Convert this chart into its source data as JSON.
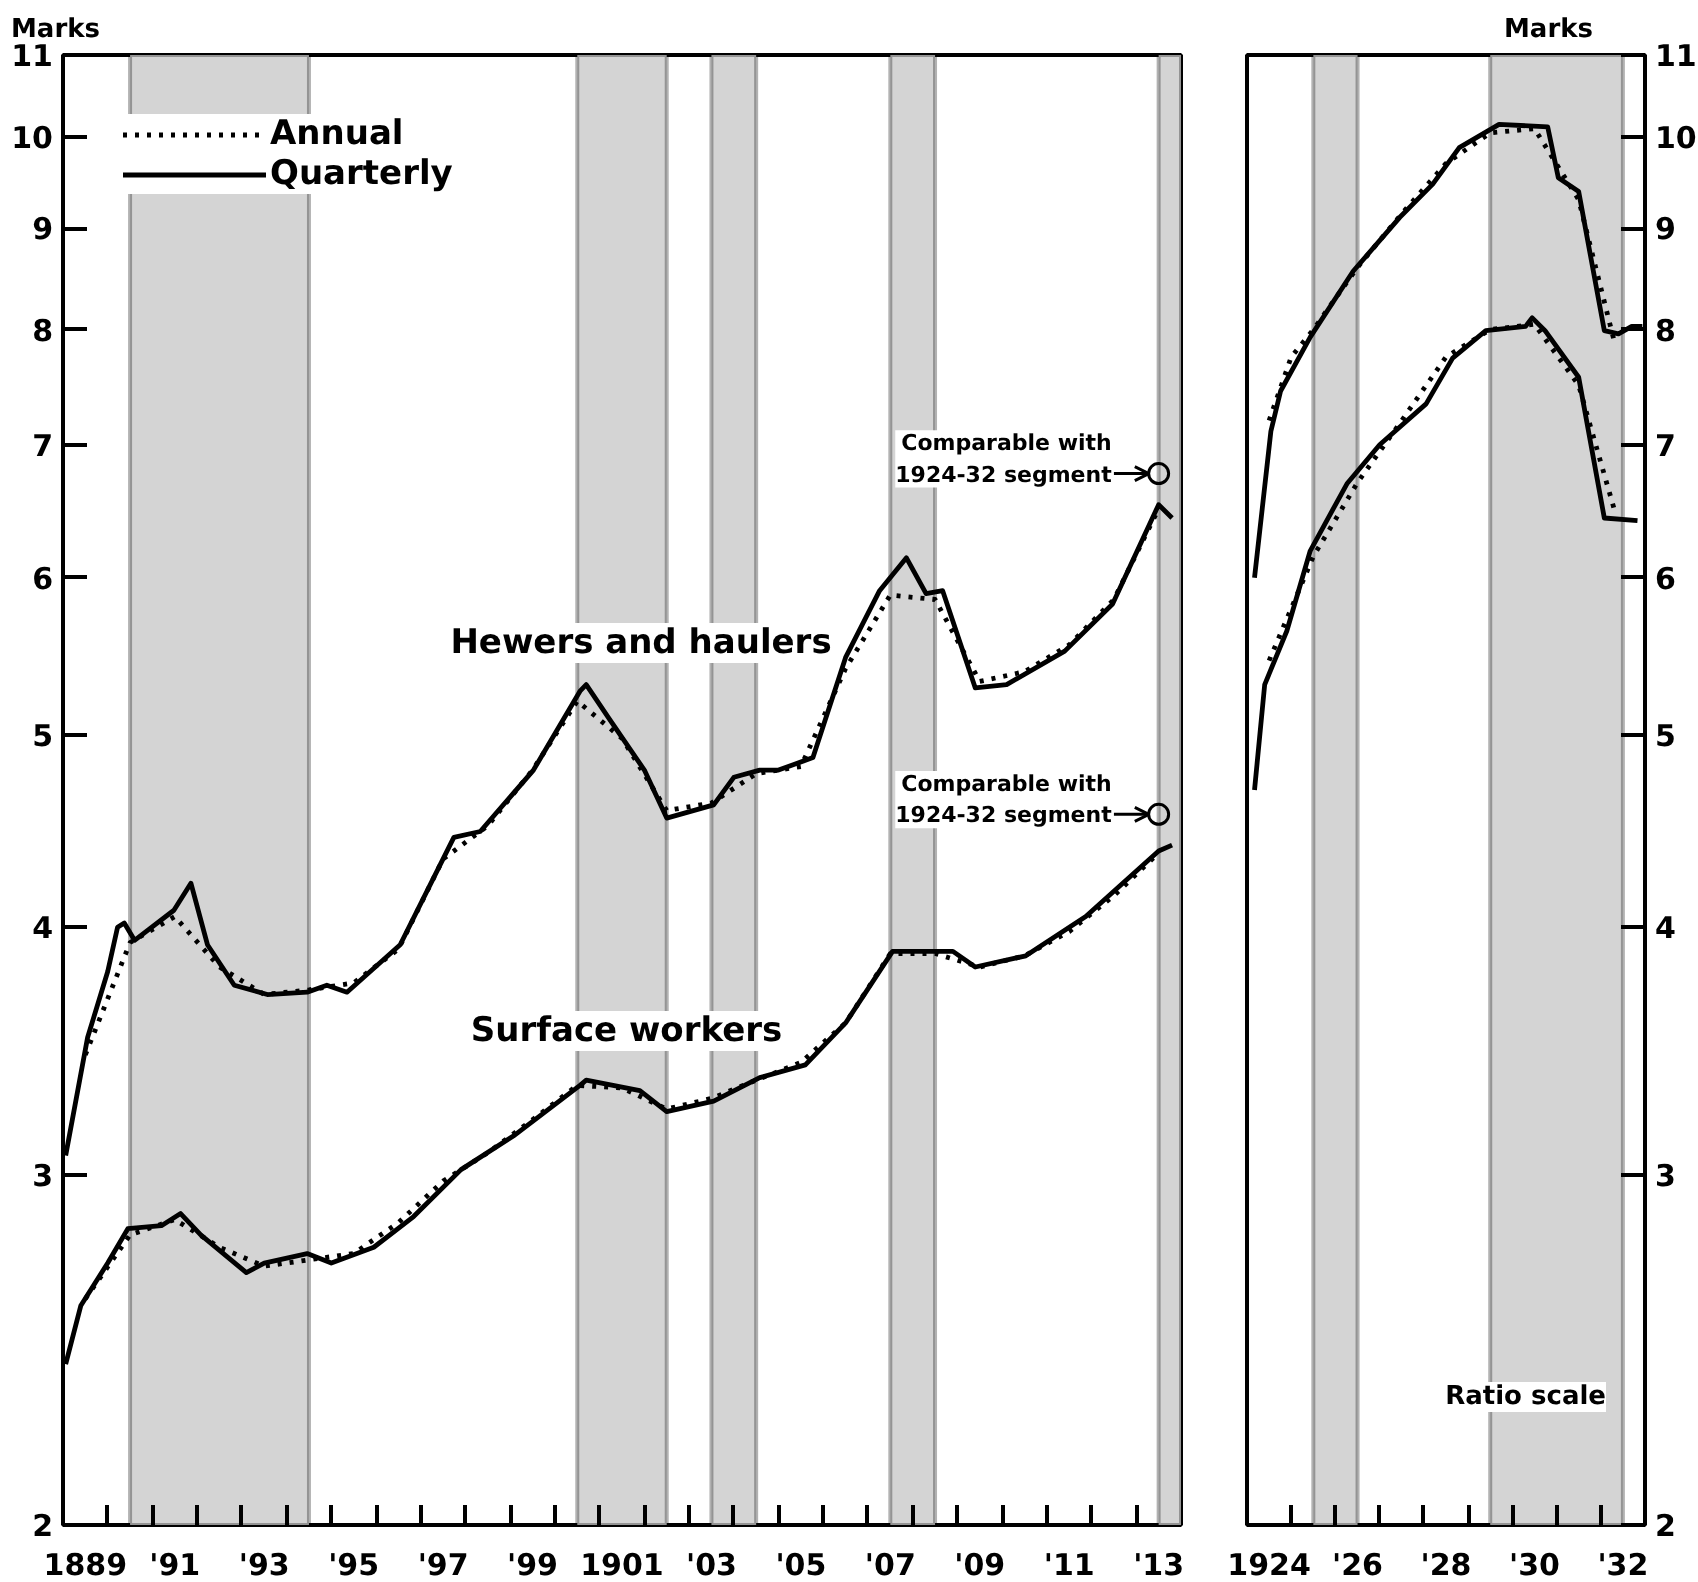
{
  "chart_data": [
    {
      "type": "line",
      "ylabel": "Marks",
      "log": true,
      "grid": false,
      "legend": "top left",
      "xlim": [
        1888.5,
        1913.5
      ],
      "ylim": [
        2,
        11
      ],
      "yticks": [
        2,
        3,
        4,
        5,
        6,
        7,
        8,
        9,
        10,
        11
      ],
      "xticks": [
        {
          "value": 1889,
          "label": "1889"
        },
        {
          "value": 1891,
          "label": "'91"
        },
        {
          "value": 1893,
          "label": "'93"
        },
        {
          "value": 1895,
          "label": "'95"
        },
        {
          "value": 1897,
          "label": "'97"
        },
        {
          "value": 1899,
          "label": "'99"
        },
        {
          "value": 1901,
          "label": "1901"
        },
        {
          "value": 1903,
          "label": "'03"
        },
        {
          "value": 1905,
          "label": "'05"
        },
        {
          "value": 1907,
          "label": "'07"
        },
        {
          "value": 1909,
          "label": "'09"
        },
        {
          "value": 1911,
          "label": "'11"
        },
        {
          "value": 1913,
          "label": "'13"
        },
        {
          "value": 1889.5,
          "label": null
        },
        {
          "value": 1890.5,
          "label": null
        },
        {
          "value": 1891.5,
          "label": null
        },
        {
          "value": 1892.5,
          "label": null
        },
        {
          "value": 1893.5,
          "label": null
        },
        {
          "value": 1894.5,
          "label": null
        },
        {
          "value": 1895.5,
          "label": null
        },
        {
          "value": 1896.5,
          "label": null
        },
        {
          "value": 1897.5,
          "label": null
        },
        {
          "value": 1898.5,
          "label": null
        },
        {
          "value": 1899.5,
          "label": null
        },
        {
          "value": 1900.5,
          "label": null
        },
        {
          "value": 1901.5,
          "label": null
        },
        {
          "value": 1902.5,
          "label": null
        },
        {
          "value": 1903.5,
          "label": null
        },
        {
          "value": 1904.5,
          "label": null
        },
        {
          "value": 1905.5,
          "label": null
        },
        {
          "value": 1906.5,
          "label": null
        },
        {
          "value": 1907.5,
          "label": null
        },
        {
          "value": 1908.5,
          "label": null
        },
        {
          "value": 1909.5,
          "label": null
        },
        {
          "value": 1910.5,
          "label": null
        },
        {
          "value": 1911.5,
          "label": null
        },
        {
          "value": 1912.5,
          "label": null
        }
      ],
      "bands": [
        {
          "axis": "x",
          "from": 1890,
          "to": 1894,
          "color": "#d4d4d4"
        },
        {
          "axis": "x",
          "from": 1900,
          "to": 1902,
          "color": "#d4d4d4"
        },
        {
          "axis": "x",
          "from": 1903,
          "to": 1904,
          "color": "#d4d4d4"
        },
        {
          "axis": "x",
          "from": 1907,
          "to": 1908,
          "color": "#d4d4d4"
        },
        {
          "axis": "x",
          "from": 1913,
          "to": 1913.5,
          "color": "#d4d4d4"
        }
      ],
      "annotations": [
        "Hewers and haulers",
        "Surface workers",
        {
          "text": "Comparable with\n1924-32 segment",
          "x": 1913,
          "y": 6.77
        },
        {
          "text": "Comparable with\n1924-32 segment",
          "x": 1913,
          "y": 4.56
        }
      ],
      "series": [
        {
          "name": "Annual",
          "color": "#000000",
          "line_style": "dotted",
          "x": [
            1889,
            1890,
            1891,
            1892,
            1893,
            1894,
            1895,
            1896,
            1897,
            1898,
            1899,
            1900,
            1901,
            1902,
            1903,
            1904,
            1905,
            1906,
            1907,
            1908,
            1909,
            1910,
            1911,
            1912,
            1913
          ],
          "values": [
            3.45,
            3.93,
            4.05,
            3.82,
            3.7,
            3.72,
            3.75,
            3.9,
            4.33,
            4.5,
            4.8,
            5.2,
            4.98,
            4.58,
            4.62,
            4.78,
            4.82,
            5.4,
            5.88,
            5.85,
            5.32,
            5.38,
            5.55,
            5.85,
            6.5
          ]
        },
        {
          "name": "Quarterly",
          "color": "#000000",
          "line_style": "solid",
          "x": [
            1888.56,
            1889.05,
            1889.5,
            1889.72,
            1889.87,
            1890.1,
            1890.98,
            1891.36,
            1891.73,
            1892.33,
            1893.07,
            1893.96,
            1894.4,
            1894.85,
            1896.04,
            1897.24,
            1897.83,
            1899.02,
            1900.06,
            1900.2,
            1900.7,
            1901.5,
            1902.0,
            1903.05,
            1903.5,
            1904.08,
            1904.5,
            1905.27,
            1906.0,
            1906.76,
            1907.36,
            1907.8,
            1908.17,
            1908.9,
            1909.6,
            1910.9,
            1911.97,
            1913.0,
            1913.3
          ],
          "values": [
            3.07,
            3.52,
            3.8,
            4.0,
            4.02,
            3.94,
            4.08,
            4.21,
            3.92,
            3.74,
            3.7,
            3.71,
            3.74,
            3.71,
            3.92,
            4.44,
            4.47,
            4.8,
            5.26,
            5.3,
            5.1,
            4.8,
            4.54,
            4.61,
            4.76,
            4.8,
            4.8,
            4.87,
            5.47,
            5.91,
            6.14,
            5.89,
            5.91,
            5.28,
            5.3,
            5.51,
            5.82,
            6.53,
            6.43
          ]
        },
        {
          "color": "#000000",
          "line_style": "dotted",
          "x": [
            1889,
            1890,
            1891,
            1892,
            1893,
            1894,
            1895,
            1896,
            1897,
            1898,
            1899,
            1900,
            1901,
            1902,
            1903,
            1904,
            1905,
            1906,
            1907,
            1908,
            1909,
            1910,
            1911,
            1912,
            1913
          ],
          "values": [
            2.6,
            2.8,
            2.85,
            2.76,
            2.7,
            2.72,
            2.74,
            2.84,
            2.98,
            3.08,
            3.2,
            3.33,
            3.32,
            3.24,
            3.28,
            3.35,
            3.42,
            3.58,
            3.88,
            3.88,
            3.82,
            3.87,
            3.98,
            4.15,
            4.36
          ]
        },
        {
          "color": "#000000",
          "line_style": "solid",
          "x": [
            1888.56,
            1888.9,
            1889.5,
            1889.95,
            1890.7,
            1891.13,
            1891.58,
            1892.6,
            1893.0,
            1893.96,
            1894.5,
            1895.45,
            1896.34,
            1897.4,
            1898.57,
            1900.06,
            1900.2,
            1901.4,
            1902.0,
            1903.05,
            1904.08,
            1905.1,
            1906.0,
            1907.05,
            1907.95,
            1908.4,
            1908.9,
            1910.03,
            1911.37,
            1913.0,
            1913.3
          ],
          "values": [
            2.41,
            2.58,
            2.71,
            2.82,
            2.83,
            2.87,
            2.8,
            2.68,
            2.71,
            2.74,
            2.71,
            2.76,
            2.86,
            3.02,
            3.14,
            3.33,
            3.35,
            3.31,
            3.23,
            3.27,
            3.36,
            3.41,
            3.58,
            3.89,
            3.89,
            3.89,
            3.82,
            3.87,
            4.05,
            4.37,
            4.4
          ]
        }
      ]
    },
    {
      "type": "line",
      "ylabel": "Marks",
      "log": true,
      "grid": false,
      "xlim": [
        1923.5,
        1932.5
      ],
      "ylim": [
        2,
        11
      ],
      "yticks": [
        2,
        3,
        4,
        5,
        6,
        7,
        8,
        9,
        10,
        11
      ],
      "xticks": [
        {
          "value": 1924,
          "label": "1924"
        },
        {
          "value": 1926,
          "label": "'26"
        },
        {
          "value": 1928,
          "label": "'28"
        },
        {
          "value": 1930,
          "label": "'30"
        },
        {
          "value": 1932,
          "label": "'32"
        },
        {
          "value": 1924.5,
          "label": null
        },
        {
          "value": 1925.5,
          "label": null
        },
        {
          "value": 1926.5,
          "label": null
        },
        {
          "value": 1927.5,
          "label": null
        },
        {
          "value": 1928.5,
          "label": null
        },
        {
          "value": 1929.5,
          "label": null
        },
        {
          "value": 1930.5,
          "label": null
        },
        {
          "value": 1931.5,
          "label": null
        }
      ],
      "bands": [
        {
          "axis": "x",
          "from": 1925,
          "to": 1926,
          "color": "#d4d4d4"
        },
        {
          "axis": "x",
          "from": 1929,
          "to": 1932,
          "color": "#d4d4d4"
        }
      ],
      "annotations": [
        "Ratio scale"
      ],
      "series": [
        {
          "color": "#000000",
          "line_style": "dotted",
          "x": [
            1924,
            1924.5,
            1925,
            1926,
            1927,
            1928,
            1929,
            1930,
            1931,
            1931.8
          ],
          "values": [
            7.2,
            7.75,
            8.0,
            8.6,
            9.15,
            9.7,
            10.05,
            10.1,
            9.3,
            7.9
          ]
        },
        {
          "color": "#000000",
          "line_style": "solid",
          "x": [
            1923.67,
            1924.04,
            1924.26,
            1924.93,
            1925.9,
            1926.95,
            1927.7,
            1928.3,
            1929.2,
            1930.3,
            1930.54,
            1931.0,
            1931.58,
            1931.9,
            1932.2,
            1932.44
          ],
          "values": [
            6.0,
            7.11,
            7.45,
            7.93,
            8.56,
            9.11,
            9.47,
            9.88,
            10.15,
            10.12,
            9.54,
            9.39,
            7.99,
            7.96,
            8.03,
            8.03
          ]
        },
        {
          "color": "#000000",
          "line_style": "dotted",
          "x": [
            1924,
            1925,
            1926,
            1927,
            1928,
            1929,
            1930,
            1931,
            1931.8
          ],
          "values": [
            5.45,
            6.15,
            6.7,
            7.2,
            7.75,
            8.0,
            8.05,
            7.5,
            6.5
          ]
        },
        {
          "color": "#000000",
          "line_style": "solid",
          "x": [
            1923.67,
            1923.9,
            1924.4,
            1924.93,
            1925.76,
            1926.5,
            1927.55,
            1928.15,
            1928.9,
            1929.8,
            1929.95,
            1930.24,
            1931.0,
            1931.58,
            1932.33
          ],
          "values": [
            4.69,
            5.3,
            5.64,
            6.19,
            6.69,
            7.0,
            7.34,
            7.74,
            7.99,
            8.03,
            8.11,
            7.99,
            7.57,
            6.43,
            6.41
          ]
        }
      ]
    }
  ]
}
